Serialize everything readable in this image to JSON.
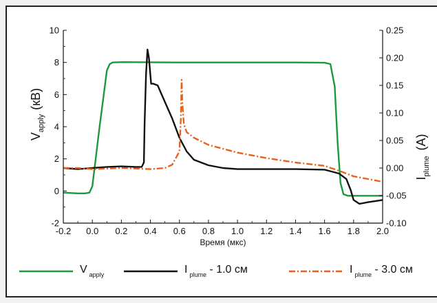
{
  "chart_data": {
    "type": "line",
    "xlabel": "Время (мкс)",
    "ylabel_left": {
      "main": "V",
      "sub": "apply",
      "unit": "(кВ)"
    },
    "ylabel_right": {
      "main": "I",
      "sub": "plume",
      "unit": "(A)"
    },
    "xlim": [
      -0.2,
      2.0
    ],
    "ylim_left": [
      -2,
      10
    ],
    "ylim_right": [
      -0.1,
      0.25
    ],
    "x_ticks": [
      "-0.2",
      "0.0",
      "0.2",
      "0.4",
      "0.6",
      "0.8",
      "1.0",
      "1.2",
      "1.4",
      "1.6",
      "1.8",
      "2.0"
    ],
    "y_left_ticks": [
      "-2",
      "0",
      "2",
      "4",
      "6",
      "8",
      "10"
    ],
    "y_right_ticks": [
      "-0.10",
      "-0.05",
      "0.00",
      "0.05",
      "0.10",
      "0.15",
      "0.20",
      "0.25"
    ],
    "series": [
      {
        "name_main": "V",
        "name_sub": "apply",
        "name_suffix": "",
        "axis": "left",
        "color": "#1a9a3c",
        "dash": "solid",
        "x": [
          -0.2,
          -0.1,
          -0.05,
          -0.02,
          0.0,
          0.05,
          0.1,
          0.12,
          0.14,
          0.2,
          0.6,
          1.0,
          1.4,
          1.6,
          1.64,
          1.67,
          1.69,
          1.71,
          1.73,
          1.76,
          1.8,
          1.9,
          2.0
        ],
        "y": [
          -0.1,
          -0.15,
          -0.15,
          -0.1,
          0.3,
          4.0,
          7.5,
          7.9,
          8.0,
          8.02,
          8.0,
          8.0,
          8.0,
          7.98,
          7.9,
          6.5,
          3.0,
          0.5,
          -0.2,
          -0.3,
          -0.3,
          -0.3,
          -0.3
        ]
      },
      {
        "name_main": "I",
        "name_sub": "plume",
        "name_suffix": " - 1.0 см",
        "axis": "right",
        "color": "#111111",
        "dash": "solid",
        "x": [
          -0.2,
          -0.1,
          0.0,
          0.1,
          0.2,
          0.3,
          0.34,
          0.355,
          0.36,
          0.37,
          0.38,
          0.39,
          0.405,
          0.42,
          0.45,
          0.5,
          0.55,
          0.6,
          0.65,
          0.7,
          0.8,
          0.9,
          1.0,
          1.2,
          1.4,
          1.6,
          1.7,
          1.75,
          1.78,
          1.8,
          1.84,
          1.9,
          2.0
        ],
        "y": [
          0.0,
          -0.002,
          0.0,
          0.002,
          0.003,
          0.002,
          0.002,
          0.01,
          0.08,
          0.17,
          0.215,
          0.2,
          0.153,
          0.153,
          0.15,
          0.12,
          0.09,
          0.055,
          0.03,
          0.015,
          0.005,
          0.0,
          -0.002,
          -0.002,
          -0.002,
          -0.003,
          -0.01,
          -0.02,
          -0.04,
          -0.058,
          -0.065,
          -0.062,
          -0.058
        ]
      },
      {
        "name_main": "I",
        "name_sub": "plume",
        "name_suffix": " - 3.0 см",
        "axis": "right",
        "color": "#e8611a",
        "dash": "dashdot",
        "x": [
          -0.2,
          -0.1,
          0.0,
          0.1,
          0.2,
          0.3,
          0.4,
          0.5,
          0.55,
          0.6,
          0.61,
          0.615,
          0.62,
          0.63,
          0.65,
          0.7,
          0.8,
          1.0,
          1.2,
          1.4,
          1.6,
          1.7,
          1.75,
          1.8,
          1.9,
          2.0
        ],
        "y": [
          0.0,
          0.0,
          -0.002,
          -0.001,
          0.0,
          -0.001,
          -0.002,
          0.0,
          0.006,
          0.03,
          0.09,
          0.16,
          0.12,
          0.08,
          0.065,
          0.055,
          0.042,
          0.028,
          0.018,
          0.01,
          0.004,
          -0.005,
          -0.01,
          -0.015,
          -0.02,
          -0.025
        ]
      }
    ]
  }
}
